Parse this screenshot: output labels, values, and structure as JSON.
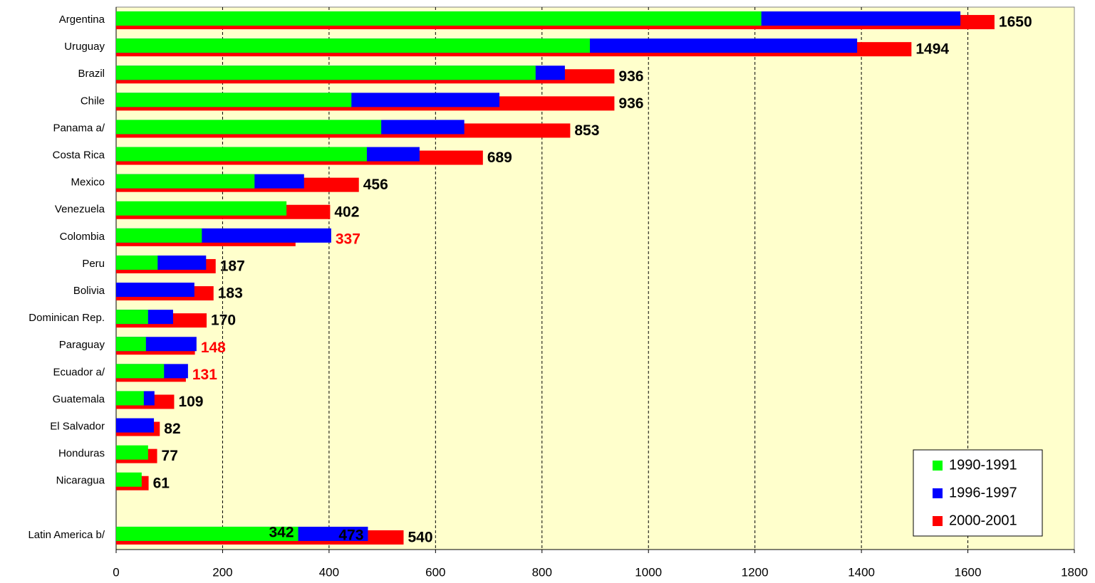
{
  "chart_data": {
    "type": "bar",
    "orientation": "horizontal",
    "background": "#ffffcc",
    "grid": true,
    "legend_position": "lower right",
    "categories": [
      "Argentina",
      "Uruguay",
      "Brazil",
      "Chile",
      "Panama a/",
      "Costa Rica",
      "Mexico",
      "Venezuela",
      "Colombia",
      "Peru",
      "Bolivia",
      "Dominican Rep.",
      "Paraguay",
      "Ecuador a/",
      "Guatemala",
      "El Salvador",
      "Honduras",
      "Nicaragua",
      null,
      "Latin America b/"
    ],
    "series": [
      {
        "name": "1990-1991",
        "color": "#00ff00",
        "values": [
          1212,
          890,
          788,
          442,
          498,
          471,
          260,
          320,
          161,
          78,
          null,
          60,
          56,
          90,
          52,
          null,
          60,
          48,
          null,
          342
        ]
      },
      {
        "name": "1996-1997",
        "color": "#0000ff",
        "values": [
          1586,
          1392,
          843,
          720,
          654,
          570,
          353,
          null,
          404,
          169,
          147,
          107,
          151,
          135,
          72,
          71,
          null,
          null,
          null,
          473
        ]
      },
      {
        "name": "2000-2001",
        "color": "#ff0000",
        "values": [
          1650,
          1494,
          936,
          936,
          853,
          689,
          456,
          402,
          337,
          187,
          183,
          170,
          148,
          131,
          109,
          82,
          77,
          61,
          null,
          540
        ]
      }
    ],
    "xlim": [
      0,
      1800
    ],
    "xticks": [
      0,
      200,
      400,
      600,
      800,
      1000,
      1200,
      1400,
      1600,
      1800
    ]
  }
}
